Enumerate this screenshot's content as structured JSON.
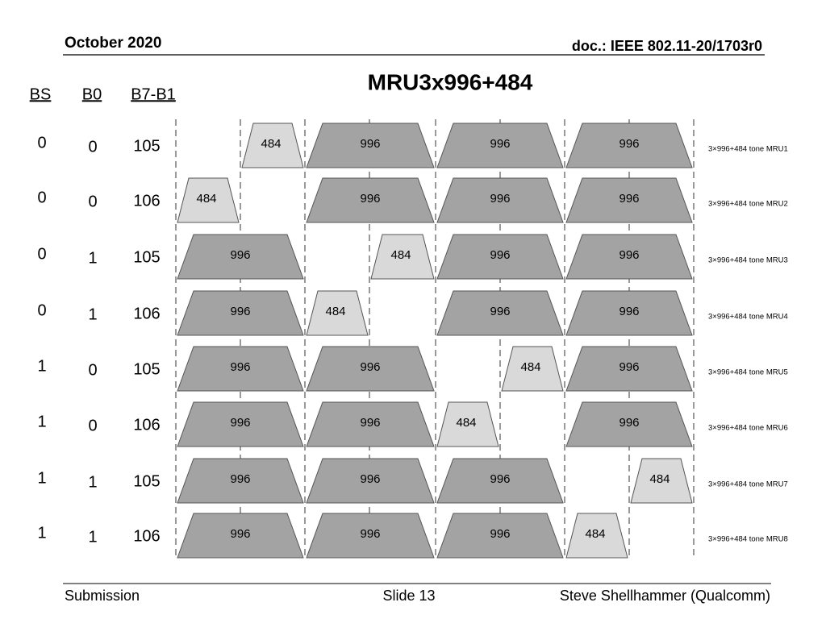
{
  "header": {
    "date": "October 2020",
    "doc": "doc.: IEEE 802.11-20/1703r0"
  },
  "title": "MRU3x996+484",
  "columns": [
    "BS",
    "B0",
    "B7-B1"
  ],
  "rows": [
    {
      "bs": "0",
      "b0": "0",
      "b7_b1": "105",
      "blocks": [
        "484",
        "996",
        "996",
        "996"
      ],
      "label": "3×996+484 tone MRU1"
    },
    {
      "bs": "0",
      "b0": "0",
      "b7_b1": "106",
      "blocks": [
        "484",
        "996",
        "996",
        "996"
      ],
      "label": "3×996+484 tone MRU2"
    },
    {
      "bs": "0",
      "b0": "1",
      "b7_b1": "105",
      "blocks": [
        "996",
        "484",
        "996",
        "996"
      ],
      "label": "3×996+484 tone MRU3"
    },
    {
      "bs": "0",
      "b0": "1",
      "b7_b1": "106",
      "blocks": [
        "996",
        "484",
        "996",
        "996"
      ],
      "label": "3×996+484 tone MRU4"
    },
    {
      "bs": "1",
      "b0": "0",
      "b7_b1": "105",
      "blocks": [
        "996",
        "996",
        "484",
        "996"
      ],
      "label": "3×996+484 tone MRU5"
    },
    {
      "bs": "1",
      "b0": "0",
      "b7_b1": "106",
      "blocks": [
        "996",
        "996",
        "484",
        "996"
      ],
      "label": "3×996+484 tone MRU6"
    },
    {
      "bs": "1",
      "b0": "1",
      "b7_b1": "105",
      "blocks": [
        "996",
        "996",
        "996",
        "484"
      ],
      "label": "3×996+484 tone MRU7"
    },
    {
      "bs": "1",
      "b0": "1",
      "b7_b1": "106",
      "blocks": [
        "996",
        "996",
        "996",
        "484"
      ],
      "label": "3×996+484 tone MRU8"
    }
  ],
  "footer": {
    "left": "Submission",
    "center": "Slide 13",
    "right": "Steve Shellhammer (Qualcomm)"
  }
}
